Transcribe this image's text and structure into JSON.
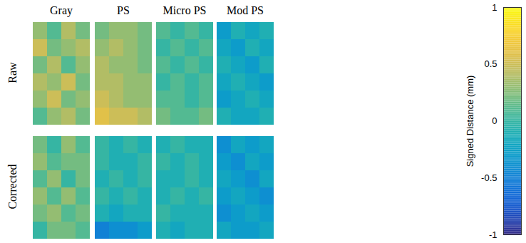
{
  "chart_data": {
    "type": "heatmap",
    "columns": [
      "Gray",
      "PS",
      "Micro PS",
      "Mod PS"
    ],
    "rows": [
      "Raw",
      "Corrected"
    ],
    "panels": [
      {
        "row": "Raw",
        "column": "Gray",
        "cells": [
          [
            0.3,
            0.1,
            0.4,
            0.2
          ],
          [
            0.5,
            0.2,
            0.3,
            0.4
          ],
          [
            0.2,
            0.4,
            0.1,
            0.3
          ],
          [
            0.4,
            0.3,
            0.5,
            0.2
          ],
          [
            0.3,
            0.5,
            0.2,
            0.3
          ],
          [
            0.1,
            0.3,
            0.4,
            0.2
          ]
        ]
      },
      {
        "row": "Raw",
        "column": "PS",
        "cells": [
          [
            0.2,
            0.3,
            0.3,
            0.2
          ],
          [
            0.3,
            0.4,
            0.3,
            0.2
          ],
          [
            0.4,
            0.3,
            0.3,
            0.2
          ],
          [
            0.4,
            0.4,
            0.3,
            0.3
          ],
          [
            0.5,
            0.4,
            0.3,
            0.3
          ],
          [
            0.6,
            0.5,
            0.5,
            0.4
          ]
        ]
      },
      {
        "row": "Raw",
        "column": "Micro PS",
        "cells": [
          [
            0.1,
            0.0,
            0.1,
            0.0
          ],
          [
            0.0,
            0.1,
            0.0,
            0.1
          ],
          [
            0.1,
            0.0,
            0.1,
            0.0
          ],
          [
            0.0,
            0.1,
            0.0,
            0.1
          ],
          [
            0.1,
            0.1,
            0.0,
            0.1
          ],
          [
            0.2,
            0.1,
            0.1,
            0.2
          ]
        ]
      },
      {
        "row": "Raw",
        "column": "Mod PS",
        "cells": [
          [
            -0.3,
            -0.1,
            -0.2,
            -0.1
          ],
          [
            -0.2,
            -0.3,
            -0.1,
            -0.2
          ],
          [
            -0.1,
            -0.2,
            -0.3,
            -0.1
          ],
          [
            -0.2,
            -0.1,
            -0.2,
            -0.3
          ],
          [
            -0.3,
            -0.2,
            -0.1,
            -0.2
          ],
          [
            -0.1,
            -0.2,
            -0.2,
            -0.1
          ]
        ]
      },
      {
        "row": "Corrected",
        "column": "Gray",
        "cells": [
          [
            0.2,
            0.0,
            0.3,
            0.1
          ],
          [
            0.3,
            0.1,
            0.2,
            0.2
          ],
          [
            0.1,
            0.3,
            0.0,
            0.2
          ],
          [
            0.3,
            0.1,
            0.3,
            0.1
          ],
          [
            0.2,
            0.3,
            0.1,
            0.2
          ],
          [
            0.0,
            0.2,
            0.2,
            0.1
          ]
        ]
      },
      {
        "row": "Corrected",
        "column": "PS",
        "cells": [
          [
            0.0,
            -0.1,
            0.0,
            -0.1
          ],
          [
            0.0,
            -0.1,
            -0.1,
            0.0
          ],
          [
            -0.1,
            0.0,
            -0.1,
            0.0
          ],
          [
            0.0,
            -0.1,
            0.0,
            -0.1
          ],
          [
            -0.1,
            -0.2,
            -0.1,
            -0.1
          ],
          [
            -0.5,
            -0.4,
            -0.4,
            -0.3
          ]
        ]
      },
      {
        "row": "Corrected",
        "column": "Micro PS",
        "cells": [
          [
            -0.1,
            0.0,
            -0.1,
            -0.1
          ],
          [
            0.0,
            -0.1,
            0.0,
            -0.1
          ],
          [
            -0.1,
            -0.1,
            0.0,
            -0.1
          ],
          [
            -0.1,
            0.0,
            -0.1,
            0.0
          ],
          [
            0.0,
            -0.1,
            -0.1,
            -0.1
          ],
          [
            -0.1,
            -0.2,
            -0.1,
            -0.1
          ]
        ]
      },
      {
        "row": "Corrected",
        "column": "Mod PS",
        "cells": [
          [
            -0.4,
            -0.2,
            -0.3,
            -0.2
          ],
          [
            -0.3,
            -0.4,
            -0.2,
            -0.3
          ],
          [
            -0.2,
            -0.3,
            -0.4,
            -0.2
          ],
          [
            -0.3,
            -0.2,
            -0.3,
            -0.4
          ],
          [
            -0.4,
            -0.3,
            -0.2,
            -0.3
          ],
          [
            -0.2,
            -0.3,
            -0.3,
            -0.2
          ]
        ]
      }
    ],
    "colorbar": {
      "label": "Signed Distance (mm)",
      "range": [
        -1,
        1
      ],
      "ticks": [
        -1,
        -0.5,
        0,
        0.5,
        1
      ]
    }
  }
}
